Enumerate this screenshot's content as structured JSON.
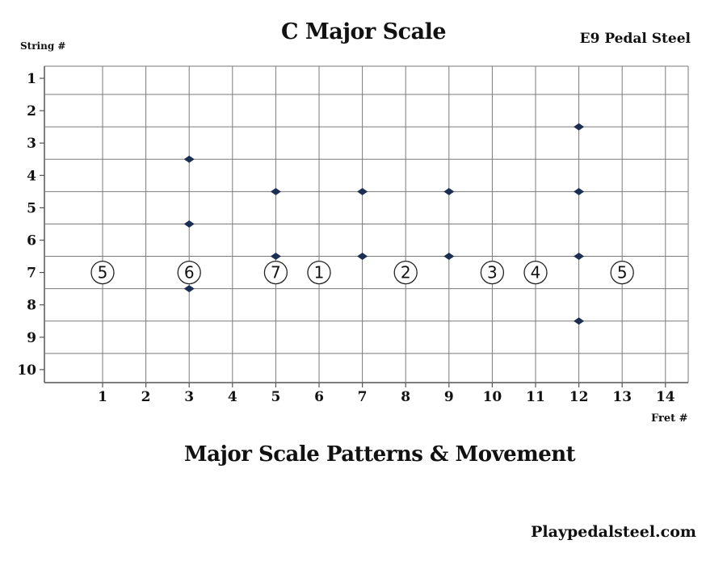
{
  "header": {
    "title": "C Major Scale",
    "instrument": "E9 Pedal Steel",
    "y_caption": "String #",
    "x_caption": "Fret #"
  },
  "footer": {
    "subtitle": "Major Scale Patterns & Movement",
    "website": "Playpedalsteel.com"
  },
  "colors": {
    "grid": "#7a7a7a",
    "marker": "#1c2e52",
    "text": "#111111"
  },
  "chart_data": {
    "type": "scatter",
    "x_ticks": [
      1,
      2,
      3,
      4,
      5,
      6,
      7,
      8,
      9,
      10,
      11,
      12,
      13,
      14
    ],
    "y_ticks": [
      1,
      2,
      3,
      4,
      5,
      6,
      7,
      8,
      9,
      10
    ],
    "x_range": [
      0,
      14
    ],
    "y_range": [
      0.5,
      10.5
    ],
    "y_inverted": true,
    "grid": true,
    "scale_degrees": [
      {
        "fret": 1,
        "string": 7,
        "label": "5"
      },
      {
        "fret": 3,
        "string": 7,
        "label": "6"
      },
      {
        "fret": 5,
        "string": 7,
        "label": "7"
      },
      {
        "fret": 6,
        "string": 7,
        "label": "1"
      },
      {
        "fret": 8,
        "string": 7,
        "label": "2"
      },
      {
        "fret": 10,
        "string": 7,
        "label": "3"
      },
      {
        "fret": 11,
        "string": 7,
        "label": "4"
      },
      {
        "fret": 13,
        "string": 7,
        "label": "5"
      }
    ],
    "fret_markers": [
      {
        "fret": 3,
        "string": 3.5
      },
      {
        "fret": 3,
        "string": 5.5
      },
      {
        "fret": 3,
        "string": 7.5
      },
      {
        "fret": 5,
        "string": 4.5
      },
      {
        "fret": 5,
        "string": 6.5
      },
      {
        "fret": 7,
        "string": 4.5
      },
      {
        "fret": 7,
        "string": 6.5
      },
      {
        "fret": 9,
        "string": 4.5
      },
      {
        "fret": 9,
        "string": 6.5
      },
      {
        "fret": 12,
        "string": 2.5
      },
      {
        "fret": 12,
        "string": 4.5
      },
      {
        "fret": 12,
        "string": 6.5
      },
      {
        "fret": 12,
        "string": 8.5
      }
    ]
  }
}
